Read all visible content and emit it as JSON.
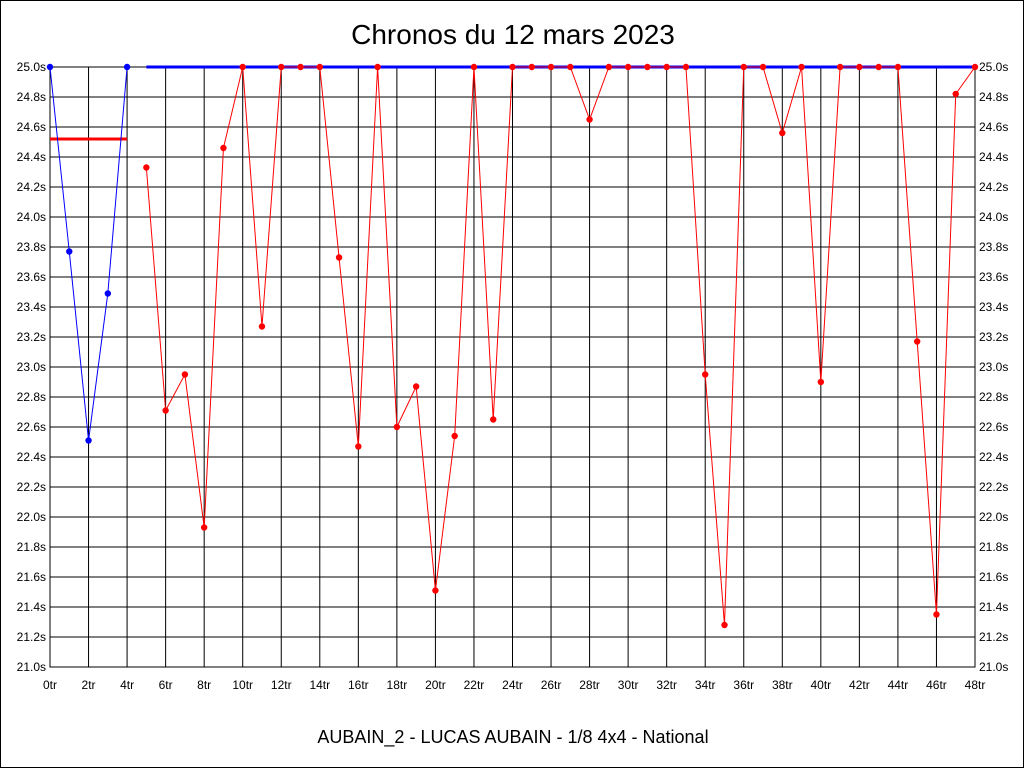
{
  "chart_data": {
    "type": "line",
    "title": "Chronos du 12 mars 2023",
    "subtitle": "AUBAIN_2 - LUCAS AUBAIN - 1/8 4x4 - National",
    "x_ticks": [
      "0tr",
      "2tr",
      "4tr",
      "6tr",
      "8tr",
      "10tr",
      "12tr",
      "14tr",
      "16tr",
      "18tr",
      "20tr",
      "22tr",
      "24tr",
      "26tr",
      "28tr",
      "30tr",
      "32tr",
      "34tr",
      "36tr",
      "38tr",
      "40tr",
      "42tr",
      "44tr",
      "46tr",
      "48tr"
    ],
    "y_ticks": [
      "21.0s",
      "21.2s",
      "21.4s",
      "21.6s",
      "21.8s",
      "22.0s",
      "22.2s",
      "22.4s",
      "22.6s",
      "22.8s",
      "23.0s",
      "23.2s",
      "23.4s",
      "23.6s",
      "23.8s",
      "24.0s",
      "24.2s",
      "24.4s",
      "24.6s",
      "24.8s",
      "25.0s"
    ],
    "xlim": [
      0,
      48
    ],
    "ylim": [
      21.0,
      25.0
    ],
    "grid": true,
    "colors": {
      "blue": "#0000ff",
      "red": "#ff0000"
    },
    "series": [
      {
        "color": "blue",
        "x": [
          0,
          1,
          2,
          3,
          4
        ],
        "y": [
          25.0,
          23.77,
          22.51,
          23.49,
          25.0
        ]
      },
      {
        "color": "red",
        "x": [
          5,
          6,
          7,
          8,
          9,
          10,
          11,
          12,
          13,
          14,
          15,
          16,
          17,
          18,
          19,
          20,
          21,
          22,
          23,
          24,
          25,
          26,
          27,
          28,
          29,
          30,
          31,
          32,
          33,
          34,
          35,
          36,
          37,
          38,
          39,
          40,
          41,
          42,
          43,
          44,
          45,
          46,
          47,
          48
        ],
        "y": [
          24.33,
          22.71,
          22.95,
          21.93,
          24.46,
          25.0,
          23.27,
          25.0,
          25.0,
          25.0,
          23.73,
          22.47,
          25.0,
          22.6,
          22.87,
          21.51,
          22.54,
          25.0,
          22.65,
          25.0,
          25.0,
          25.0,
          25.0,
          24.65,
          25.0,
          25.0,
          25.0,
          25.0,
          25.0,
          22.95,
          21.28,
          25.0,
          25.0,
          24.56,
          25.0,
          22.9,
          25.0,
          25.0,
          25.0,
          25.0,
          23.17,
          21.35,
          24.82,
          25.0
        ]
      }
    ],
    "reference_lines": [
      {
        "color": "red",
        "x": [
          0,
          4
        ],
        "y": [
          24.52,
          24.52
        ]
      },
      {
        "color": "blue",
        "x": [
          5,
          48
        ],
        "y": [
          25.0,
          25.0
        ]
      }
    ]
  }
}
